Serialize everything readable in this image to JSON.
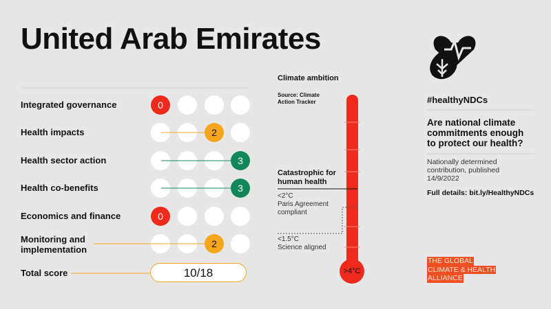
{
  "header": {
    "title": "United Arab Emirates"
  },
  "scorecard": {
    "rows": [
      {
        "label": "Integrated governance",
        "score": 0,
        "color": "#ee2a1d"
      },
      {
        "label": "Health impacts",
        "score": 2,
        "color": "#f6a51c"
      },
      {
        "label": "Health sector action",
        "score": 3,
        "color": "#13875b"
      },
      {
        "label": "Health co-benefits",
        "score": 3,
        "color": "#13875b"
      },
      {
        "label": "Economics and finance",
        "score": 0,
        "color": "#ee2a1d"
      },
      {
        "label": "Monitoring and implementation",
        "score": 2,
        "color": "#f6a51c"
      }
    ],
    "total_label": "Total score",
    "total": "10/18"
  },
  "thermometer": {
    "title": "Climate ambition",
    "source": "Source: Climate Action Tracker",
    "catastrophic": "Catastrophic for human health",
    "paris_level": "<2°C",
    "paris_text": "Paris Agreement compliant",
    "science_level": "<1.5°C",
    "science_text": "Science aligned",
    "bulb": ">4°C"
  },
  "sidebar": {
    "hashtag": "#healthyNDCs",
    "question": "Are national climate commitments enough to protect our health?",
    "note": "Nationally determined contribution, published 14/9/2022",
    "link": "Full details: bit.ly/HealthyNDCs",
    "logo": [
      "THE GLOBAL",
      "CLIMATE & HEALTH",
      "ALLIANCE"
    ]
  }
}
